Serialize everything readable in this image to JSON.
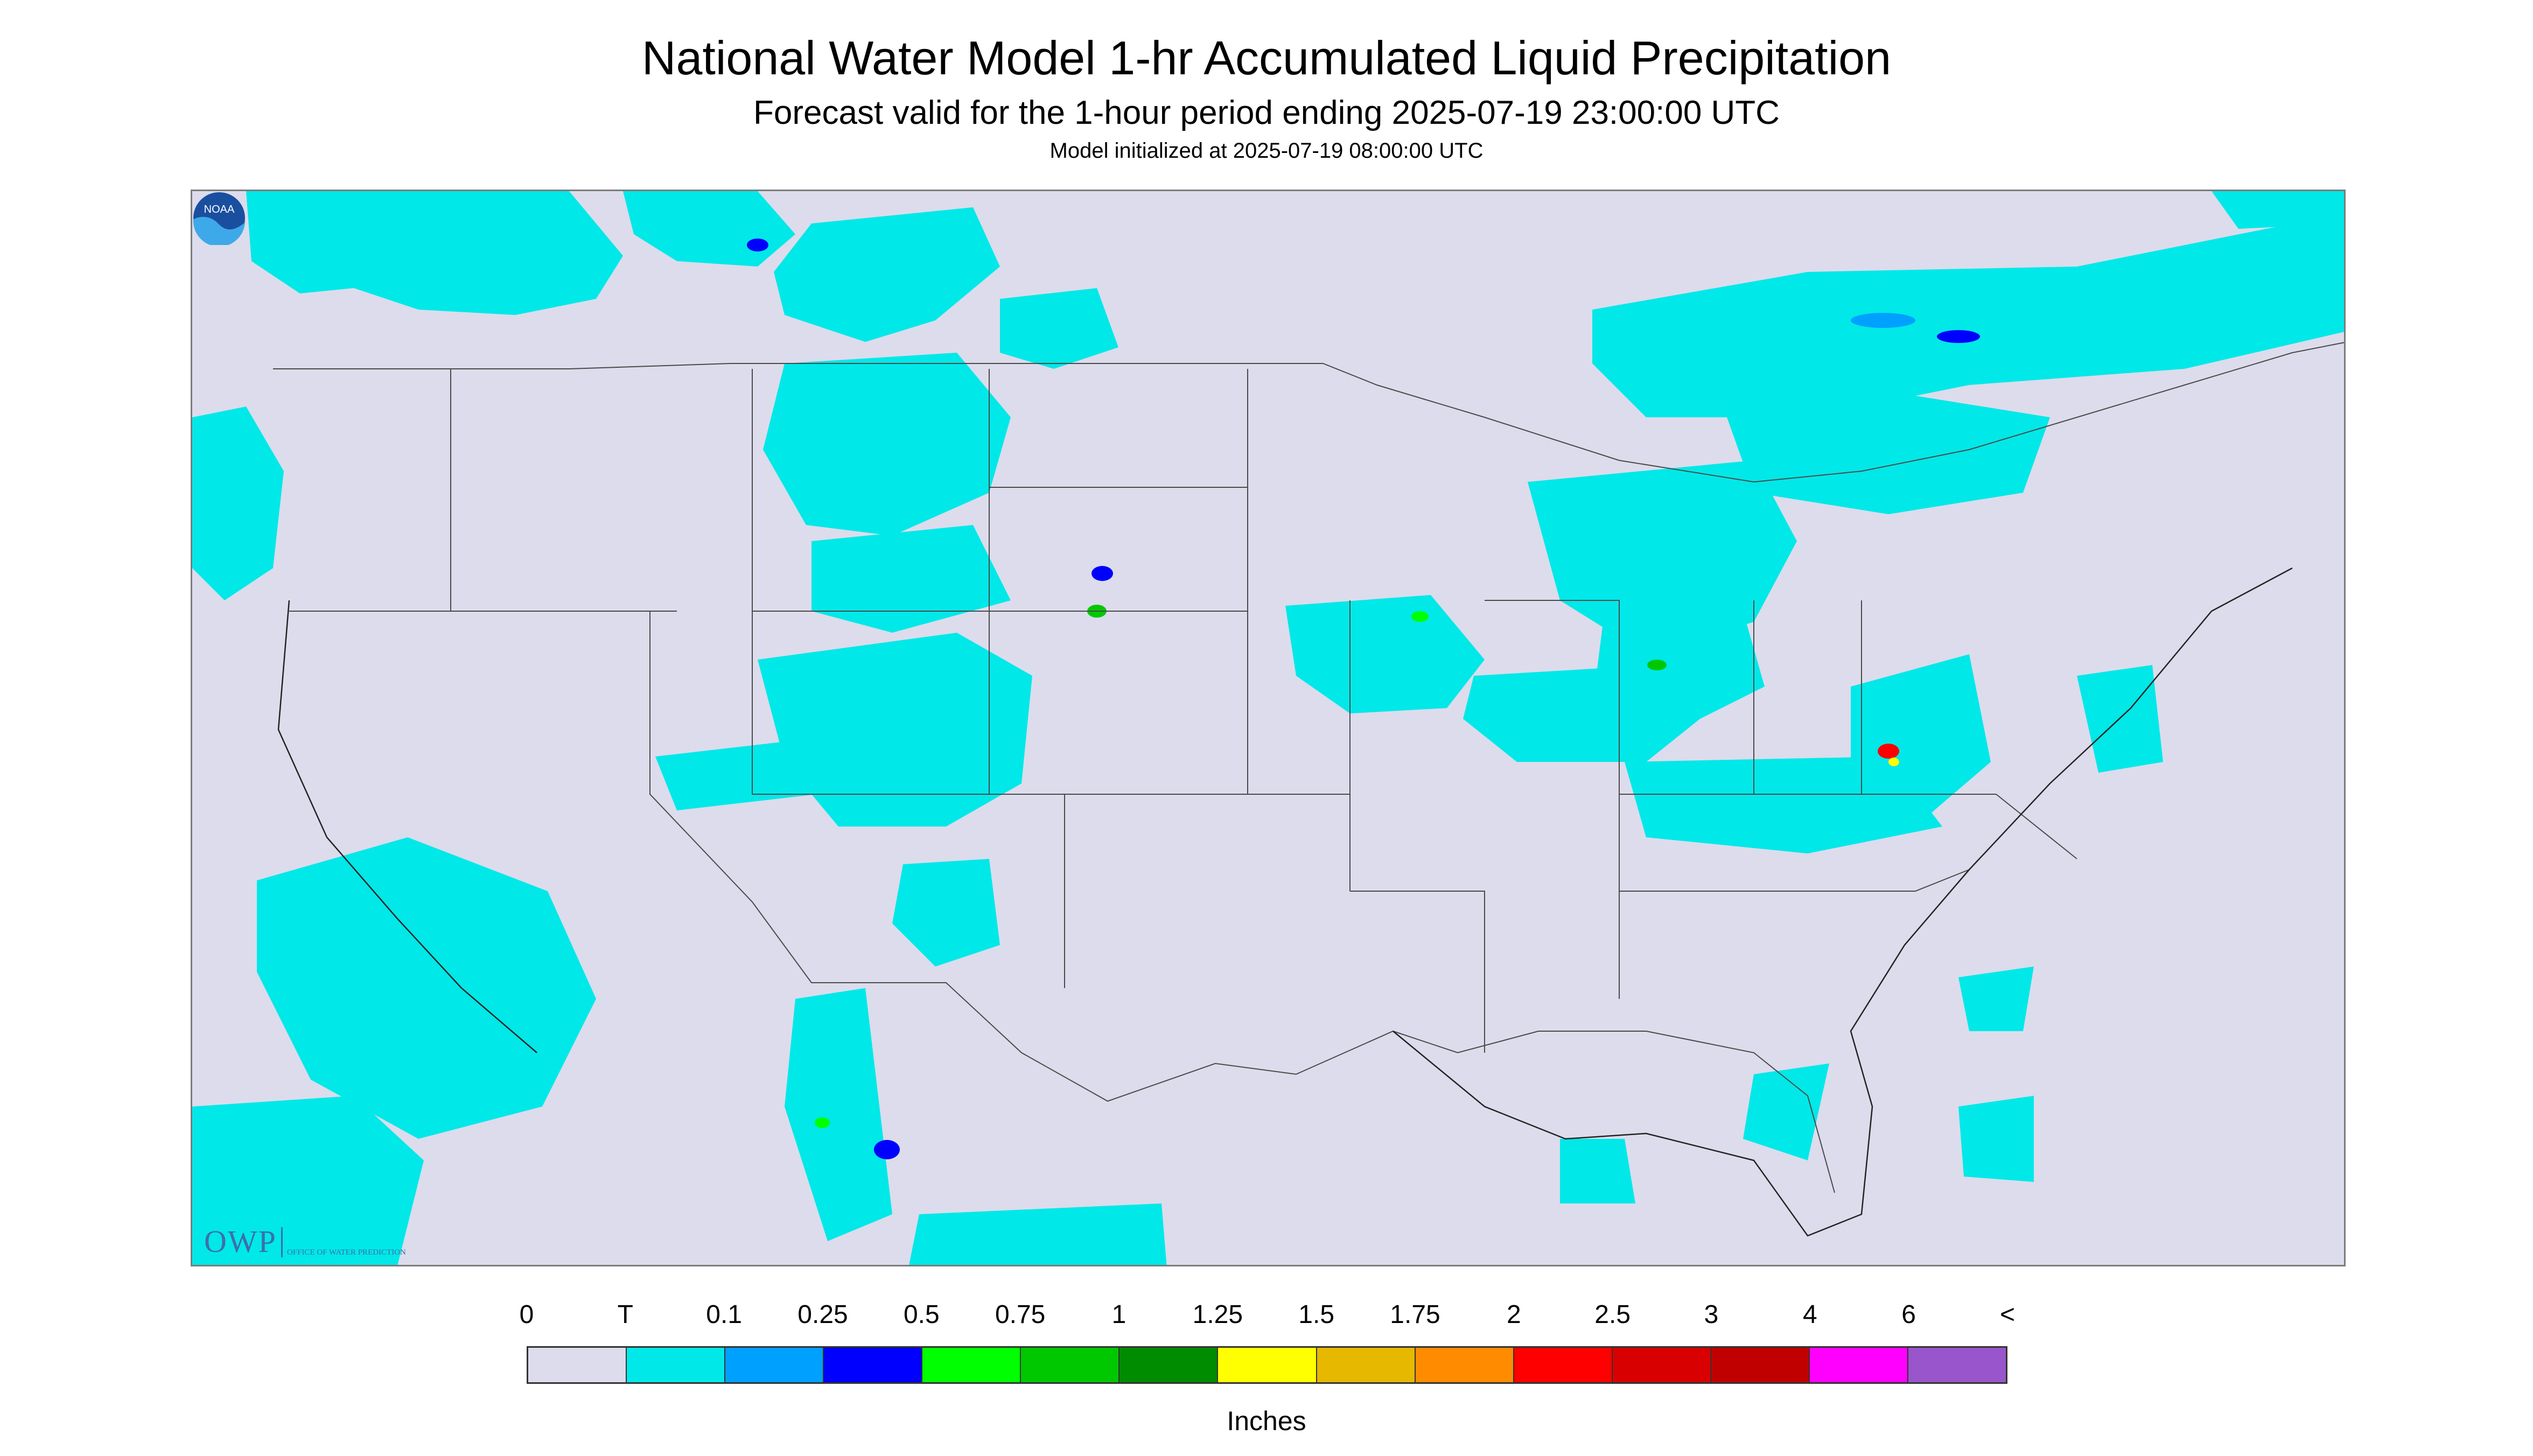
{
  "header": {
    "title": "National Water Model 1-hr Accumulated Liquid Precipitation",
    "subtitle": "Forecast valid for the 1-hour period ending 2025-07-19 23:00:00 UTC",
    "init": "Model initialized at 2025-07-19 08:00:00 UTC"
  },
  "logos": {
    "owp_mark": "OWP",
    "owp_text": "OFFICE OF WATER PREDICTION",
    "noaa": "NOAA"
  },
  "colors": {
    "background": "#dcdcec",
    "border": "#7c7c7c",
    "boundaries": "#4a4a4a",
    "trace": "#00e8e8"
  },
  "legend": {
    "labels": [
      "0",
      "T",
      "0.1",
      "0.25",
      "0.5",
      "0.75",
      "1",
      "1.25",
      "1.5",
      "1.75",
      "2",
      "2.5",
      "3",
      "4",
      "6",
      "<"
    ],
    "colors": [
      "#dcdcec",
      "#00e8e8",
      "#00a0ff",
      "#0000ff",
      "#00ff00",
      "#00c800",
      "#008c00",
      "#ffff00",
      "#e6b800",
      "#ff8c00",
      "#ff0000",
      "#d80000",
      "#c00000",
      "#ff00ff",
      "#9955cc"
    ],
    "units": "Inches"
  }
}
